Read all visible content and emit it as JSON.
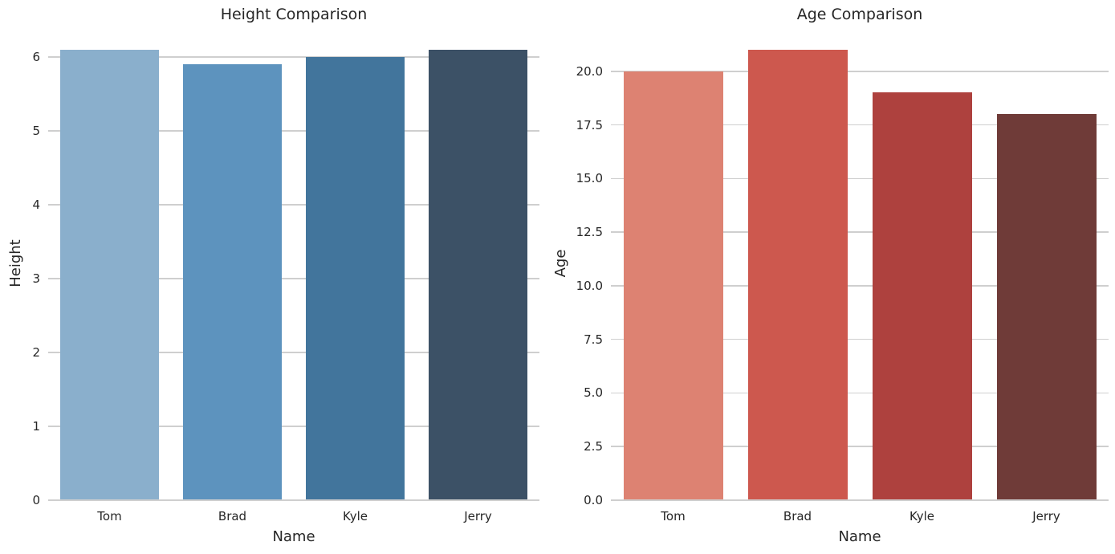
{
  "figure": {
    "background": "#ffffff",
    "text_color": "#262626",
    "grid_color": "#cfcfcf"
  },
  "chart_data": [
    {
      "type": "bar",
      "title": "Height Comparison",
      "xlabel": "Name",
      "ylabel": "Height",
      "categories": [
        "Tom",
        "Brad",
        "Kyle",
        "Jerry"
      ],
      "values": [
        6.1,
        5.9,
        6.0,
        6.1
      ],
      "bar_colors": [
        "#8aafcc",
        "#5d93be",
        "#42759c",
        "#3c5166"
      ],
      "ylim": [
        0,
        6.405
      ],
      "ytick_values": [
        0,
        1,
        2,
        3,
        4,
        5,
        6
      ],
      "ytick_labels": [
        "0",
        "1",
        "2",
        "3",
        "4",
        "5",
        "6"
      ],
      "grid": true,
      "legend": false
    },
    {
      "type": "bar",
      "title": "Age Comparison",
      "xlabel": "Name",
      "ylabel": "Age",
      "categories": [
        "Tom",
        "Brad",
        "Kyle",
        "Jerry"
      ],
      "values": [
        20,
        21,
        19,
        18
      ],
      "bar_colors": [
        "#dd8272",
        "#cd584e",
        "#ae413e",
        "#6f3b38"
      ],
      "ylim": [
        0,
        22.05
      ],
      "ytick_values": [
        0,
        2.5,
        5,
        7.5,
        10,
        12.5,
        15,
        17.5,
        20
      ],
      "ytick_labels": [
        "0.0",
        "2.5",
        "5.0",
        "7.5",
        "10.0",
        "12.5",
        "15.0",
        "17.5",
        "20.0"
      ],
      "grid": true,
      "legend": false
    }
  ]
}
